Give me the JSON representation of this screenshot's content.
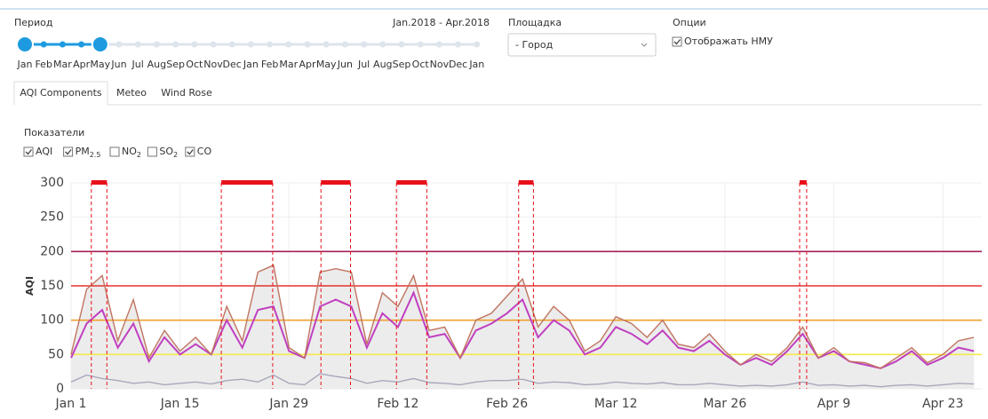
{
  "period": {
    "title": "Период",
    "range": "Jan.2018 - Apr.2018",
    "months": [
      "Jan",
      "Feb",
      "Mar",
      "Apr",
      "May",
      "Jun",
      "Jul",
      "Aug",
      "Sep",
      "Oct",
      "Nov",
      "Dec",
      "Jan",
      "Feb",
      "Mar",
      "Apr",
      "May",
      "Jun",
      "Jul",
      "Aug",
      "Sep",
      "Oct",
      "Nov",
      "Dec",
      "Jan"
    ],
    "selected": [
      0,
      4
    ]
  },
  "site": {
    "title": "Площадка",
    "value": "- Город"
  },
  "options": {
    "title": "Опции",
    "label": "Отображать НМУ",
    "checked": true
  },
  "tabs": [
    {
      "label": "AQI Components",
      "active": true
    },
    {
      "label": "Meteo",
      "active": false
    },
    {
      "label": "Wind Rose",
      "active": false
    }
  ],
  "indicators_title": "Показатели",
  "chart_data": {
    "type": "line",
    "y_label": "AQI",
    "xlim": [
      0,
      117
    ],
    "ylim": [
      0,
      300
    ],
    "xticks": [
      {
        "value": 0,
        "label": "Jan 1"
      },
      {
        "value": 14,
        "label": "Jan 15"
      },
      {
        "value": 28,
        "label": "Jan 29"
      },
      {
        "value": 42,
        "label": "Feb 12"
      },
      {
        "value": 56,
        "label": "Feb 26"
      },
      {
        "value": 70,
        "label": "Mar 12"
      },
      {
        "value": 84,
        "label": "Mar 26"
      },
      {
        "value": 98,
        "label": "Apr 9"
      },
      {
        "value": 112,
        "label": "Apr 23"
      }
    ],
    "yticks": [
      0,
      50,
      100,
      150,
      200,
      250,
      300
    ],
    "grid": true,
    "x": [
      0,
      2,
      4,
      6,
      8,
      10,
      12,
      14,
      16,
      18,
      20,
      22,
      24,
      26,
      28,
      30,
      32,
      34,
      36,
      38,
      40,
      42,
      44,
      46,
      48,
      50,
      52,
      54,
      56,
      58,
      60,
      62,
      64,
      66,
      68,
      70,
      72,
      74,
      76,
      78,
      80,
      82,
      84,
      86,
      88,
      90,
      92,
      94,
      96,
      98,
      100,
      102,
      104,
      106,
      108,
      110,
      112,
      114,
      116
    ],
    "series": [
      {
        "name": "AQI",
        "sub": null,
        "color": "#c040c0",
        "checked": true,
        "values": [
          45,
          95,
          115,
          60,
          95,
          40,
          75,
          50,
          65,
          50,
          100,
          60,
          115,
          120,
          55,
          45,
          120,
          130,
          120,
          60,
          110,
          90,
          140,
          75,
          80,
          45,
          85,
          95,
          110,
          130,
          75,
          100,
          85,
          50,
          60,
          90,
          80,
          65,
          85,
          60,
          55,
          70,
          50,
          35,
          45,
          35,
          55,
          80,
          45,
          55,
          40,
          35,
          30,
          40,
          55,
          35,
          45,
          60,
          55
        ]
      },
      {
        "name": "PM",
        "sub": "2.5",
        "color": "#c07560",
        "checked": true,
        "fill": "#ececec",
        "values": [
          50,
          145,
          165,
          70,
          130,
          45,
          85,
          55,
          75,
          50,
          120,
          70,
          170,
          180,
          60,
          45,
          170,
          175,
          170,
          65,
          140,
          120,
          165,
          85,
          90,
          45,
          100,
          110,
          135,
          160,
          90,
          120,
          100,
          55,
          70,
          105,
          95,
          75,
          100,
          65,
          60,
          80,
          55,
          35,
          50,
          40,
          60,
          90,
          45,
          60,
          40,
          38,
          30,
          45,
          60,
          38,
          50,
          70,
          75
        ]
      },
      {
        "name": "NO",
        "sub": "2",
        "color": "#40b0d8",
        "checked": false
      },
      {
        "name": "SO",
        "sub": "2",
        "color": "#d8c820",
        "checked": false
      },
      {
        "name": "CO",
        "sub": null,
        "color": "#a8a8bc",
        "checked": true,
        "values": [
          10,
          20,
          15,
          12,
          8,
          10,
          6,
          8,
          10,
          7,
          12,
          14,
          10,
          20,
          8,
          6,
          22,
          18,
          15,
          8,
          12,
          10,
          15,
          9,
          8,
          6,
          10,
          12,
          12,
          14,
          8,
          10,
          9,
          6,
          7,
          10,
          8,
          7,
          9,
          6,
          6,
          8,
          6,
          4,
          5,
          4,
          6,
          10,
          5,
          6,
          4,
          5,
          3,
          5,
          6,
          4,
          6,
          8,
          7
        ]
      }
    ],
    "thresholds": [
      {
        "value": 50,
        "color": "#f5e94a"
      },
      {
        "value": 100,
        "color": "#f0a030"
      },
      {
        "value": 150,
        "color": "#e53030"
      },
      {
        "value": 200,
        "color": "#a3205a"
      }
    ],
    "nmu_color": "#e8101a",
    "nmu_periods": [
      [
        2.6,
        4.6
      ],
      [
        19.3,
        25.9
      ],
      [
        32.1,
        35.9
      ],
      [
        41.8,
        45.7
      ],
      [
        57.5,
        59.4
      ],
      [
        93.6,
        94.5
      ]
    ]
  }
}
